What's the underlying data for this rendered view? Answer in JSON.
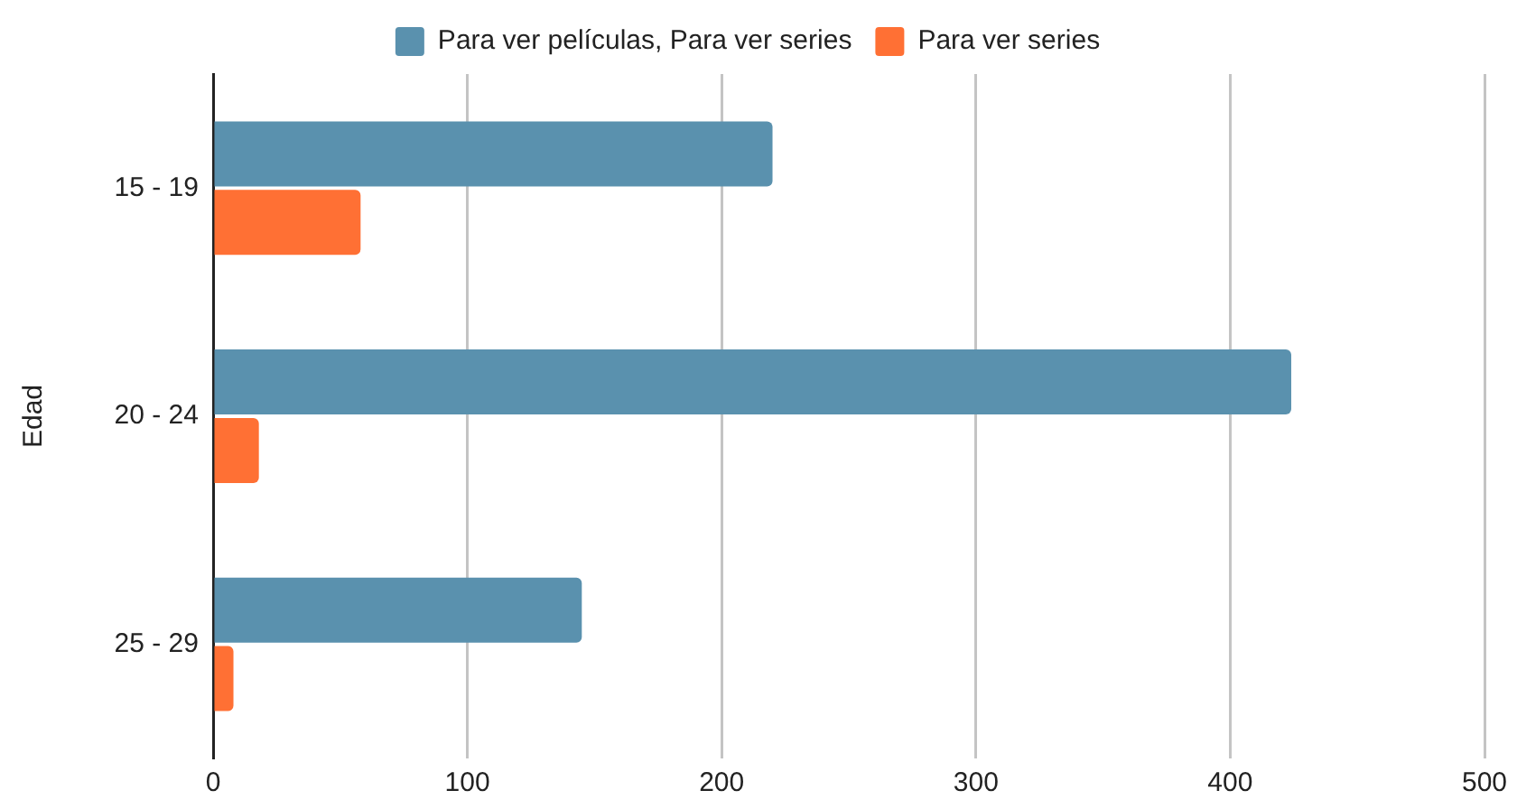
{
  "chart_data": {
    "type": "bar",
    "orientation": "horizontal",
    "ylabel": "Edad",
    "categories": [
      "15 - 19",
      "20 - 24",
      "25 - 29"
    ],
    "series": [
      {
        "name": "Para ver películas, Para ver series",
        "color": "#5a91ae",
        "values": [
          220,
          424,
          145
        ]
      },
      {
        "name": "Para ver series",
        "color": "#ff7034",
        "values": [
          58,
          18,
          8
        ]
      }
    ],
    "xlim": [
      0,
      500
    ],
    "xticks": [
      0,
      100,
      200,
      300,
      400,
      500
    ],
    "grid": "x",
    "legend": "top"
  }
}
